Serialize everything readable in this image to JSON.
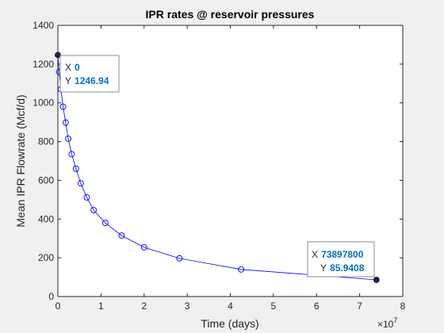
{
  "chart_data": {
    "type": "line",
    "title": "IPR rates @ reservoir pressures",
    "xlabel": "Time (days)",
    "ylabel": "Mean IPR Flowrate (Mcf/d)",
    "x_exponent_label": "×10",
    "x_exponent_power": "7",
    "x_scale": 10000000,
    "xlim": [
      0,
      80000000
    ],
    "ylim": [
      0,
      1400
    ],
    "xticks": [
      0,
      10000000,
      20000000,
      30000000,
      40000000,
      50000000,
      60000000,
      70000000,
      80000000
    ],
    "xtick_labels": [
      "0",
      "1",
      "2",
      "3",
      "4",
      "5",
      "6",
      "7",
      "8"
    ],
    "yticks": [
      0,
      200,
      400,
      600,
      800,
      1000,
      1200,
      1400
    ],
    "ytick_labels": [
      "0",
      "200",
      "400",
      "600",
      "800",
      "1000",
      "1200",
      "1400"
    ],
    "grid": false,
    "legend": "none",
    "series": [
      {
        "color": "#0000ff",
        "marker": "circle",
        "x": [
          0,
          300000,
          700000,
          1200000,
          1800000,
          2400000,
          3200000,
          4200000,
          5300000,
          6700000,
          8300000,
          11000000,
          14800000,
          20000000,
          28200000,
          42500000,
          73897800
        ],
        "y": [
          1246.94,
          1160,
          1070,
          980,
          898,
          815,
          735,
          660,
          585,
          512,
          446,
          380,
          315,
          254,
          197,
          140,
          85.9408
        ]
      }
    ],
    "datatips": [
      {
        "x_key": "X",
        "x_value": "0",
        "y_key": "Y",
        "y_value": "1246.94",
        "point_index": 0
      },
      {
        "x_key": "X",
        "x_value": "73897800",
        "y_key": "Y",
        "y_value": "85.9408",
        "point_index": 16
      }
    ]
  },
  "colors": {
    "line": "#0000ff",
    "datatip_value": "#0072bd",
    "axes": "#262626",
    "figure_bg": "#f0f0f0",
    "axes_bg": "#ffffff"
  }
}
